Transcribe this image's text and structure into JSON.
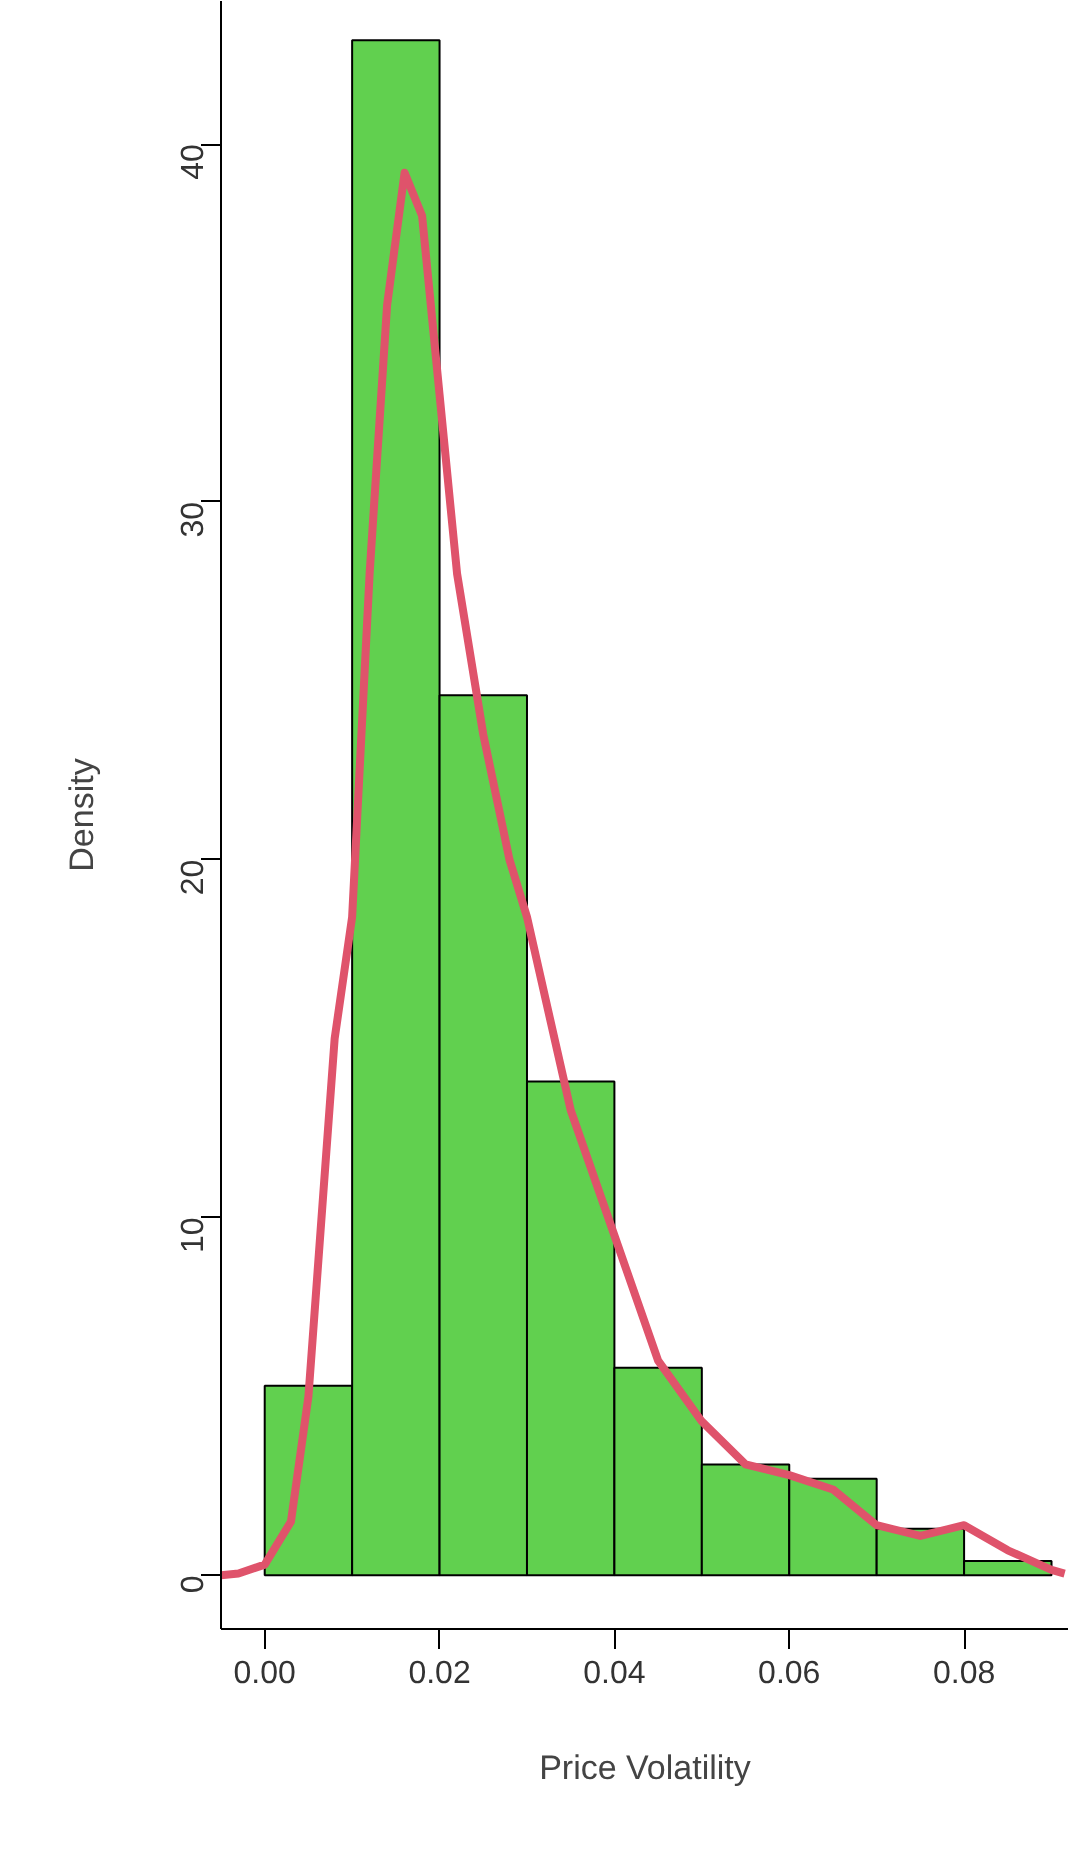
{
  "chart_data": {
    "type": "histogram",
    "xlabel": "Price Volatility",
    "ylabel": "Density",
    "color": "#61d04f",
    "bins": [
      0,
      0.01,
      0.02,
      0.03,
      0.04,
      0.05,
      0.06,
      0.07,
      0.08,
      0.09
    ],
    "values": [
      5.3,
      42.9,
      24.6,
      13.8,
      5.8,
      3.1,
      2.7,
      1.3,
      0.4
    ],
    "xlim": [
      -0.005,
      0.092
    ],
    "ylim": [
      -1.5,
      44
    ],
    "xticks": [
      {
        "value": 0,
        "label": "0.00"
      },
      {
        "value": 0.02,
        "label": "0.02"
      },
      {
        "value": 0.04,
        "label": "0.04"
      },
      {
        "value": 0.06,
        "label": "0.06"
      },
      {
        "value": 0.08,
        "label": "0.08"
      }
    ],
    "yticks": [
      0,
      10,
      20,
      30,
      40
    ],
    "grid": false,
    "series": [
      {
        "type": "line",
        "color": "#df536b",
        "x": [
          -0.005,
          -0.003,
          0,
          0.003,
          0.005,
          0.008,
          0.01,
          0.012,
          0.014,
          0.016,
          0.018,
          0.02,
          0.022,
          0.025,
          0.028,
          0.03,
          0.035,
          0.04,
          0.045,
          0.05,
          0.055,
          0.06,
          0.065,
          0.07,
          0.075,
          0.08,
          0.085,
          0.09,
          0.0915
        ],
        "values": [
          0,
          0.05,
          0.3,
          1.5,
          5,
          15,
          18.4,
          28,
          35.5,
          39.2,
          38,
          33,
          28,
          23.5,
          20,
          18.4,
          13,
          9.5,
          6,
          4.3,
          3.1,
          2.8,
          2.4,
          1.4,
          1.1,
          1.4,
          0.7,
          0.15,
          0.05
        ]
      }
    ]
  }
}
